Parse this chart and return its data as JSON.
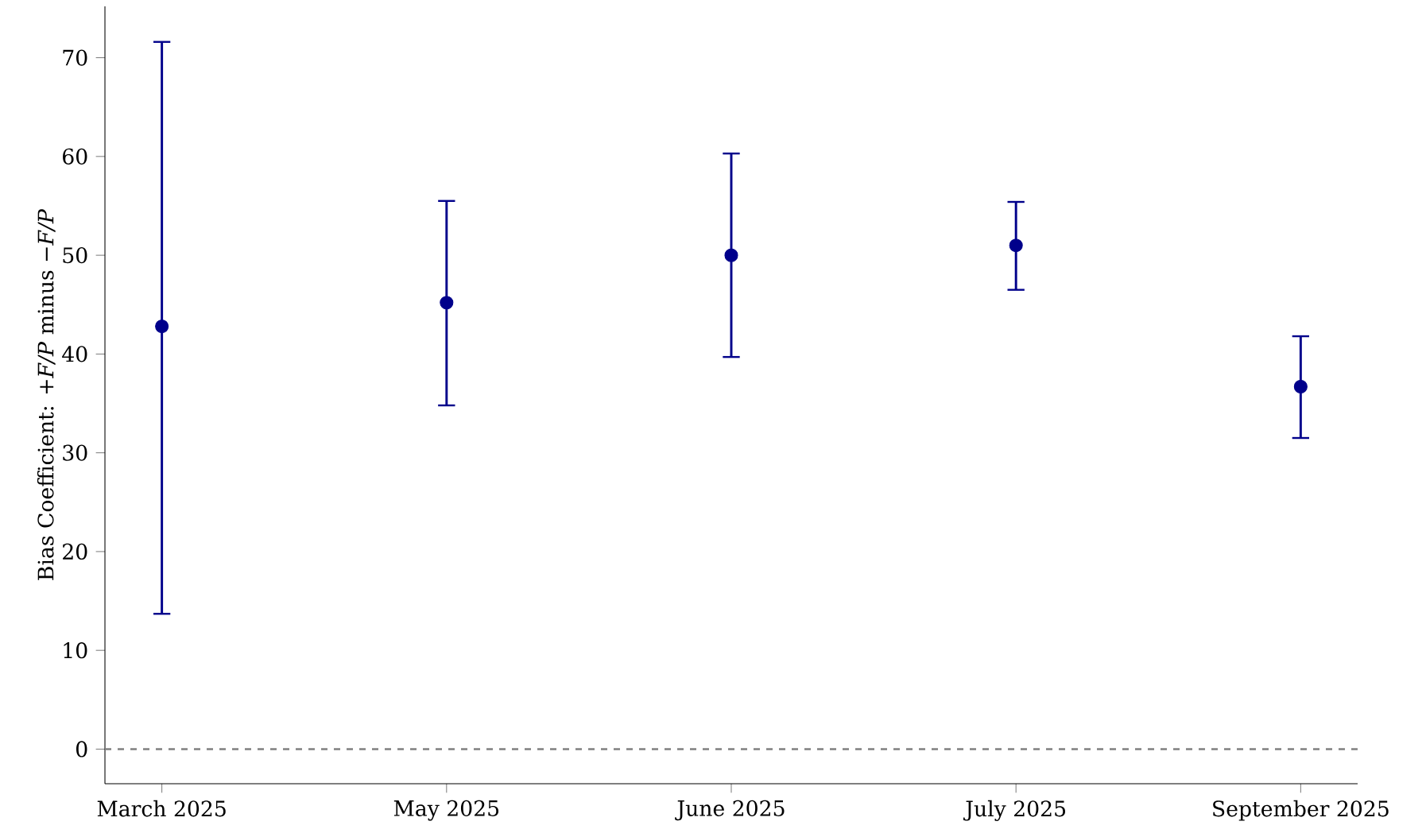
{
  "chart_data": {
    "type": "scatter",
    "ylabel": "Bias Coefficient: +*F/P* minus −*F/P*",
    "categories": [
      "March 2025",
      "May 2025",
      "June 2025",
      "July 2025",
      "September 2025"
    ],
    "values": [
      42.8,
      45.2,
      50.0,
      51.0,
      36.7
    ],
    "errors": [
      [
        13.7,
        71.6
      ],
      [
        34.8,
        55.5
      ],
      [
        39.7,
        60.3
      ],
      [
        46.5,
        55.4
      ],
      [
        31.5,
        41.8
      ]
    ],
    "color": "#00008b",
    "marker": "circle",
    "ylim": [
      -3.5,
      75.2
    ],
    "yticks": [
      0,
      10,
      20,
      30,
      40,
      50,
      60,
      70
    ],
    "ref_lines": [
      {
        "axis": "y",
        "value": 0,
        "color": "#808080",
        "line_style": "dashed"
      }
    ],
    "grid": false,
    "legend": false
  }
}
